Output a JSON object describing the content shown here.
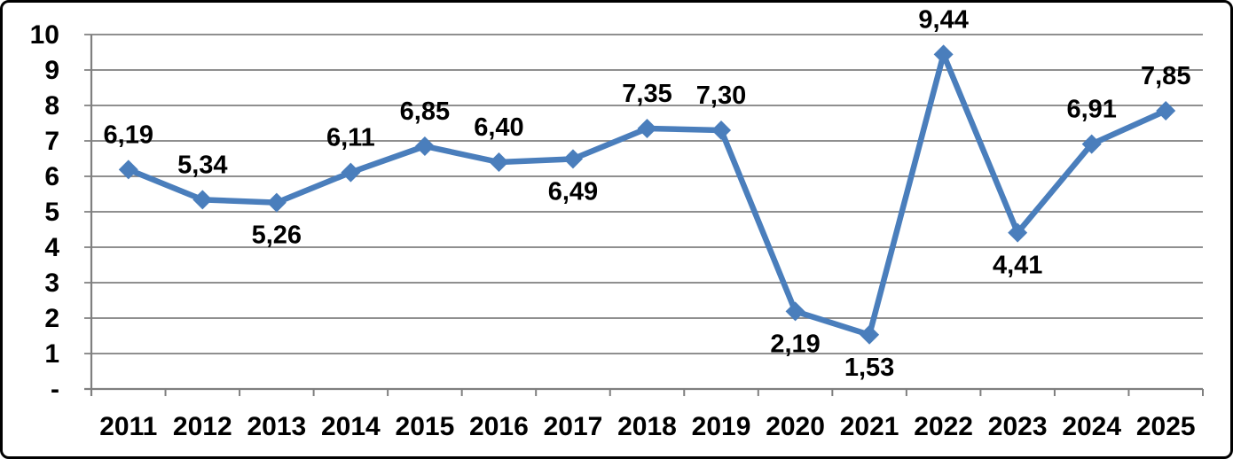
{
  "chart_data": {
    "type": "line",
    "title": "",
    "xlabel": "",
    "ylabel": "",
    "categories": [
      "2011",
      "2012",
      "2013",
      "2014",
      "2015",
      "2016",
      "2017",
      "2018",
      "2019",
      "2020",
      "2021",
      "2022",
      "2023",
      "2024",
      "2025"
    ],
    "series": [
      {
        "name": "series-1",
        "values": [
          6.19,
          5.34,
          5.26,
          6.11,
          6.85,
          6.4,
          6.49,
          7.35,
          7.3,
          2.19,
          1.53,
          9.44,
          4.41,
          6.91,
          7.85
        ]
      }
    ],
    "data_labels": [
      "6,19",
      "5,34",
      "5,26",
      "6,11",
      "6,85",
      "6,40",
      "6,49",
      "7,35",
      "7,30",
      "2,19",
      "1,53",
      "9,44",
      "4,41",
      "6,91",
      "7,85"
    ],
    "label_positions": [
      "above",
      "above",
      "below",
      "above",
      "above",
      "above",
      "below",
      "above",
      "above",
      "below",
      "below",
      "above",
      "below",
      "above",
      "above"
    ],
    "y_tick_labels": [
      "10",
      "9",
      "8",
      "7",
      "6",
      "5",
      "4",
      "3",
      "2",
      "1",
      "-"
    ],
    "ylim": [
      0,
      10
    ],
    "y_step": 1,
    "grid": true,
    "legend": "none",
    "marker": "diamond",
    "colors": {
      "line": "#4A7EBC",
      "marker": "#4A7EBC",
      "grid": "#7F7F7F",
      "axis": "#7F7F7F",
      "label_text": "#000000",
      "frame": "#000000",
      "background": "#FFFFFF"
    }
  }
}
